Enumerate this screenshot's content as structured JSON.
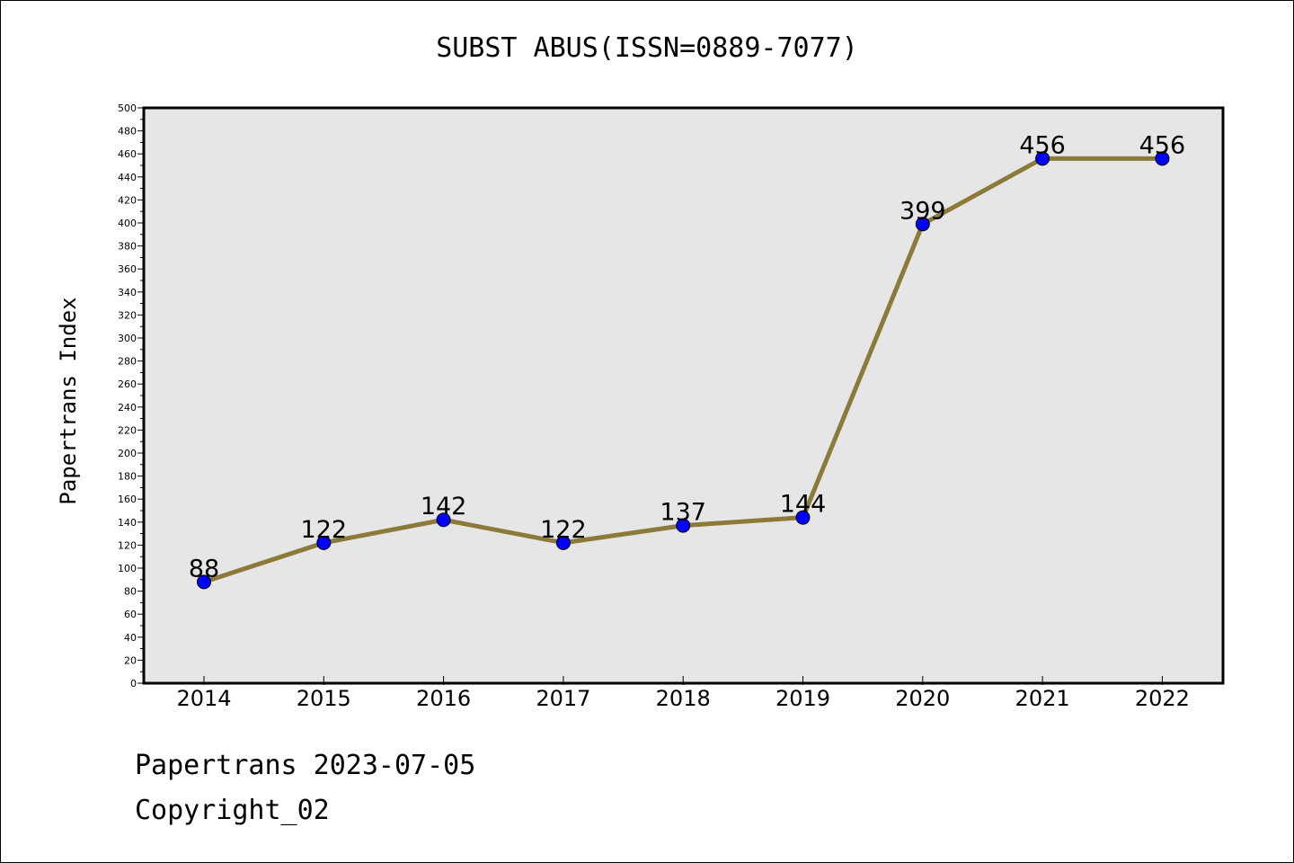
{
  "chart_data": {
    "type": "line",
    "title": "SUBST ABUS(ISSN=0889-7077)",
    "xlabel": "",
    "ylabel": "Papertrans Index",
    "categories": [
      "2014",
      "2015",
      "2016",
      "2017",
      "2018",
      "2019",
      "2020",
      "2021",
      "2022"
    ],
    "series": [
      {
        "values": [
          88,
          122,
          142,
          122,
          137,
          144,
          399,
          456,
          456
        ]
      }
    ],
    "ylim": [
      0,
      500
    ],
    "ytick_step": 20,
    "grid": false,
    "data_labels": true,
    "colors": {
      "line": "#8B7A3A",
      "marker": "#0000FF",
      "plot_background": "#E6E6E6"
    }
  },
  "footer": {
    "line1": "Papertrans 2023-07-05",
    "line2": "Copyright_02"
  }
}
